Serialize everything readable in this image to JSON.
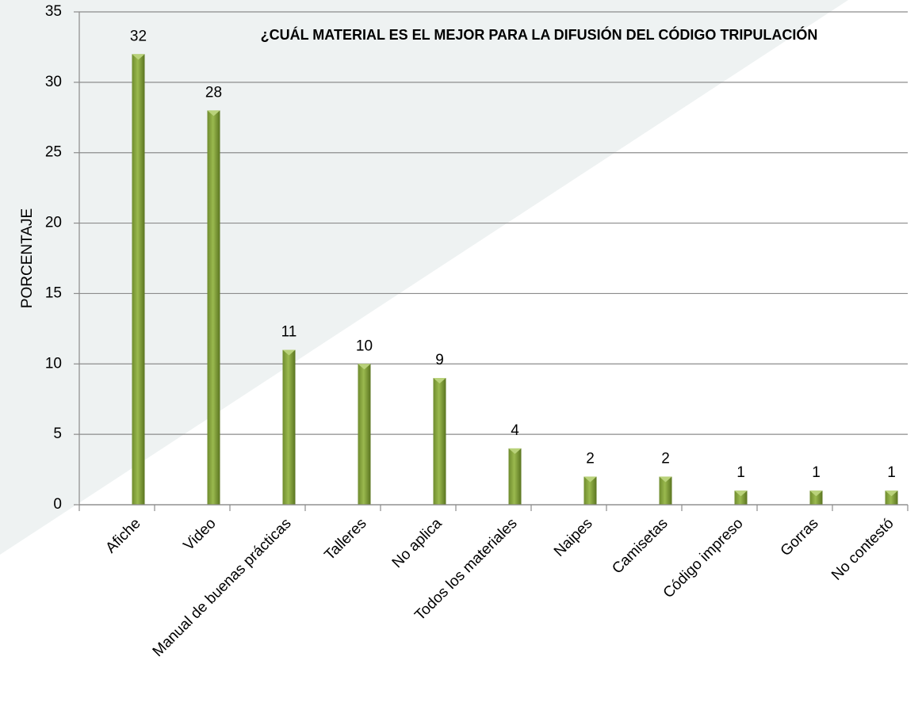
{
  "chart_data": {
    "type": "bar",
    "title": "¿CUÁL MATERIAL ES EL MEJOR PARA LA DIFUSIÓN DEL CÓDIGO TRIPULACIÓN",
    "y_label": "PORCENTAJE",
    "categories": [
      "Afiche",
      "Video",
      "Manual de buenas prácticas",
      "Talleres",
      "No aplica",
      "Todos los materiales",
      "Naipes",
      "Camisetas",
      "Código impreso",
      "Gorras",
      "No contestó"
    ],
    "values": [
      32,
      28,
      11,
      10,
      9,
      4,
      2,
      2,
      1,
      1,
      1
    ],
    "color": "#76933c",
    "ylim": [
      0,
      35
    ],
    "yticks": [
      0,
      5,
      10,
      15,
      20,
      25,
      30,
      35
    ],
    "grid": true
  }
}
